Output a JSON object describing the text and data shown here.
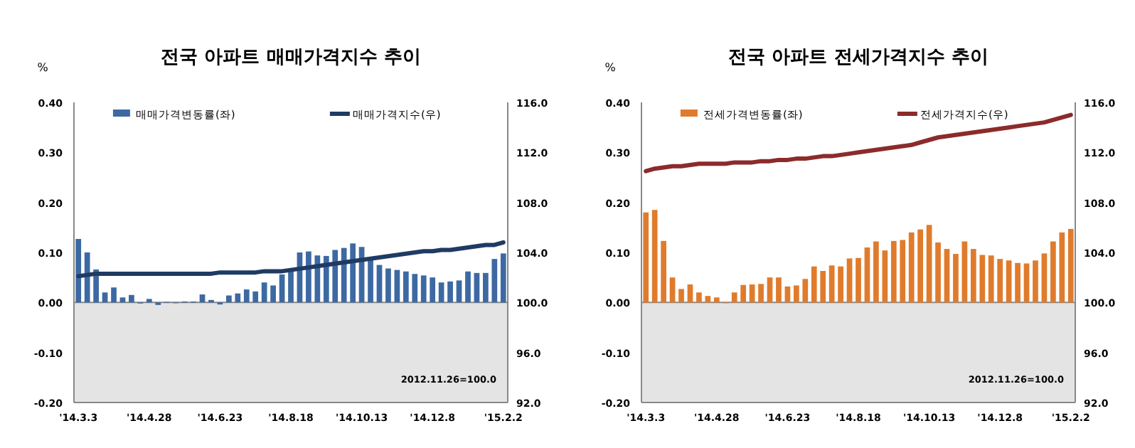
{
  "chart_data": [
    {
      "type": "bar",
      "title": "전국 아파트 매매가격지수 추이",
      "ylabel": "%",
      "categories": [
        "'14.3.3",
        null,
        null,
        null,
        null,
        null,
        null,
        null,
        "'14.4.28",
        null,
        null,
        null,
        null,
        null,
        null,
        null,
        "'14.6.23",
        null,
        null,
        null,
        null,
        null,
        null,
        null,
        "'14.8.18",
        null,
        null,
        null,
        null,
        null,
        null,
        null,
        "'14.10.13",
        null,
        null,
        null,
        null,
        null,
        null,
        null,
        "'14.12.8",
        null,
        null,
        null,
        null,
        null,
        null,
        null,
        "'15.2.2"
      ],
      "series": [
        {
          "name": "매매가격변동률(좌)",
          "color": "#3d69a3",
          "values": [
            0.127,
            0.1,
            0.066,
            0.02,
            0.03,
            0.01,
            0.015,
            -0.002,
            0.007,
            -0.005,
            0.001,
            0.0,
            0.002,
            0.002,
            0.016,
            0.005,
            -0.004,
            0.014,
            0.018,
            0.026,
            0.022,
            0.04,
            0.034,
            0.056,
            0.063,
            0.1,
            0.102,
            0.094,
            0.093,
            0.105,
            0.109,
            0.118,
            0.111,
            0.09,
            0.075,
            0.068,
            0.065,
            0.062,
            0.057,
            0.054,
            0.05,
            0.04,
            0.042,
            0.044,
            0.062,
            0.059,
            0.059,
            0.087,
            0.098
          ]
        },
        {
          "name": "매매가격지수(우)",
          "type": "line",
          "axis": "y2",
          "color": "#1f3b63",
          "values": [
            102.1,
            102.2,
            102.3,
            102.3,
            102.3,
            102.3,
            102.3,
            102.3,
            102.3,
            102.3,
            102.3,
            102.3,
            102.3,
            102.3,
            102.3,
            102.3,
            102.4,
            102.4,
            102.4,
            102.4,
            102.4,
            102.5,
            102.5,
            102.5,
            102.6,
            102.7,
            102.8,
            102.9,
            103.0,
            103.1,
            103.2,
            103.3,
            103.4,
            103.5,
            103.6,
            103.7,
            103.8,
            103.9,
            104.0,
            104.1,
            104.1,
            104.2,
            104.2,
            104.3,
            104.4,
            104.5,
            104.6,
            104.6,
            104.8
          ]
        }
      ],
      "ylim": [
        -0.2,
        0.4
      ],
      "yticks": [
        {
          "value": -0.2,
          "label": "-0.20"
        },
        {
          "value": -0.1,
          "label": "-0.10"
        },
        {
          "value": 0,
          "label": "0.00"
        },
        {
          "value": 0.1,
          "label": "0.10"
        },
        {
          "value": 0.2,
          "label": "0.20"
        },
        {
          "value": 0.3,
          "label": "0.30"
        },
        {
          "value": 0.4,
          "label": "0.40"
        }
      ],
      "y2lim": [
        92,
        116
      ],
      "y2ticks": [
        {
          "value": 92,
          "label": "92.0"
        },
        {
          "value": 96,
          "label": "96.0"
        },
        {
          "value": 100,
          "label": "100.0"
        },
        {
          "value": 104,
          "label": "104.0"
        },
        {
          "value": 108,
          "label": "108.0"
        },
        {
          "value": 112,
          "label": "112.0"
        },
        {
          "value": 116,
          "label": "116.0"
        }
      ],
      "bands": [
        {
          "axis": "y",
          "from": -0.2,
          "to": 0,
          "color": "#e4e4e4"
        }
      ],
      "annotations": [
        "2012.11.26=100.0"
      ],
      "legend": "top"
    },
    {
      "type": "bar",
      "title": "전국 아파트  전세가격지수 추이",
      "ylabel": "%",
      "categories": [
        "'14.3.3",
        null,
        null,
        null,
        null,
        null,
        null,
        null,
        "'14.4.28",
        null,
        null,
        null,
        null,
        null,
        null,
        null,
        "'14.6.23",
        null,
        null,
        null,
        null,
        null,
        null,
        null,
        "'14.8.18",
        null,
        null,
        null,
        null,
        null,
        null,
        null,
        "'14.10.13",
        null,
        null,
        null,
        null,
        null,
        null,
        null,
        "'14.12.8",
        null,
        null,
        null,
        null,
        null,
        null,
        null,
        "'15.2.2"
      ],
      "series": [
        {
          "name": "전세가격변동률(좌)",
          "color": "#e07b2c",
          "values": [
            0.18,
            0.185,
            0.123,
            0.05,
            0.027,
            0.036,
            0.02,
            0.013,
            0.01,
            -0.001,
            0.02,
            0.035,
            0.036,
            0.037,
            0.05,
            0.05,
            0.032,
            0.034,
            0.047,
            0.072,
            0.063,
            0.074,
            0.072,
            0.088,
            0.089,
            0.11,
            0.122,
            0.104,
            0.123,
            0.125,
            0.14,
            0.146,
            0.155,
            0.12,
            0.107,
            0.097,
            0.122,
            0.107,
            0.095,
            0.094,
            0.087,
            0.084,
            0.079,
            0.078,
            0.084,
            0.098,
            0.122,
            0.14,
            0.147
          ]
        },
        {
          "name": "전세가격지수(우)",
          "type": "line",
          "axis": "y2",
          "color": "#8c2b2b",
          "values": [
            110.5,
            110.7,
            110.8,
            110.9,
            110.9,
            111.0,
            111.1,
            111.1,
            111.1,
            111.1,
            111.2,
            111.2,
            111.2,
            111.3,
            111.3,
            111.4,
            111.4,
            111.5,
            111.5,
            111.6,
            111.7,
            111.7,
            111.8,
            111.9,
            112.0,
            112.1,
            112.2,
            112.3,
            112.4,
            112.5,
            112.6,
            112.8,
            113.0,
            113.2,
            113.3,
            113.4,
            113.5,
            113.6,
            113.7,
            113.8,
            113.9,
            114.0,
            114.1,
            114.2,
            114.3,
            114.4,
            114.6,
            114.8,
            115.0
          ]
        }
      ],
      "ylim": [
        -0.2,
        0.4
      ],
      "yticks": [
        {
          "value": -0.2,
          "label": "-0.20"
        },
        {
          "value": -0.1,
          "label": "-0.10"
        },
        {
          "value": 0,
          "label": "0.00"
        },
        {
          "value": 0.1,
          "label": "0.10"
        },
        {
          "value": 0.2,
          "label": "0.20"
        },
        {
          "value": 0.3,
          "label": "0.30"
        },
        {
          "value": 0.4,
          "label": "0.40"
        }
      ],
      "y2lim": [
        92,
        116
      ],
      "y2ticks": [
        {
          "value": 92,
          "label": "92.0"
        },
        {
          "value": 96,
          "label": "96.0"
        },
        {
          "value": 100,
          "label": "100.0"
        },
        {
          "value": 104,
          "label": "104.0"
        },
        {
          "value": 108,
          "label": "108.0"
        },
        {
          "value": 112,
          "label": "112.0"
        },
        {
          "value": 116,
          "label": "116.0"
        }
      ],
      "bands": [
        {
          "axis": "y",
          "from": -0.2,
          "to": 0,
          "color": "#e4e4e4"
        }
      ],
      "annotations": [
        "2012.11.26=100.0"
      ],
      "legend": "top"
    }
  ]
}
